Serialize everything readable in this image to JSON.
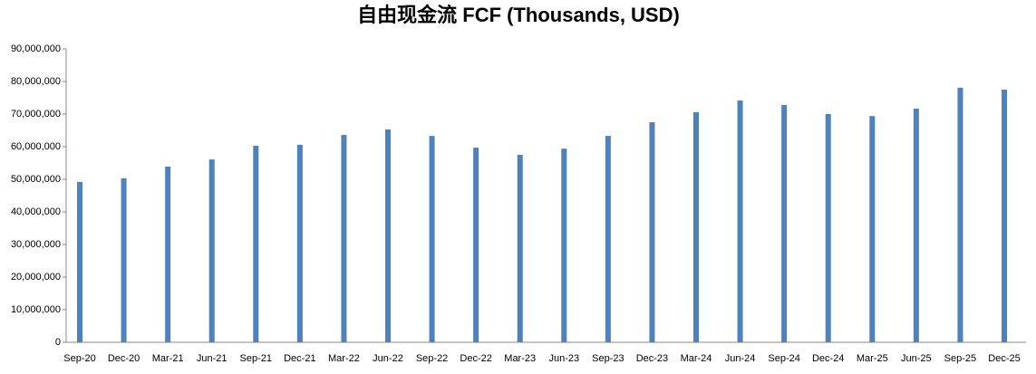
{
  "chart_data": {
    "type": "bar",
    "title": "自由现金流 FCF (Thousands, USD)",
    "categories": [
      "Sep-20",
      "Dec-20",
      "Mar-21",
      "Jun-21",
      "Sep-21",
      "Dec-21",
      "Mar-22",
      "Jun-22",
      "Sep-22",
      "Dec-22",
      "Mar-23",
      "Jun-23",
      "Sep-23",
      "Dec-23",
      "Mar-24",
      "Jun-24",
      "Sep-24",
      "Dec-24",
      "Mar-25",
      "Jun-25",
      "Sep-25",
      "Dec-25"
    ],
    "values": [
      49200000,
      50300000,
      53900000,
      56100000,
      60300000,
      60600000,
      63600000,
      65300000,
      63300000,
      59700000,
      57500000,
      59400000,
      63300000,
      67500000,
      70600000,
      74200000,
      72800000,
      70000000,
      69400000,
      71700000,
      78100000,
      77500000
    ],
    "color": "#4f81bd",
    "ylim": [
      0,
      90000000
    ],
    "yticks": [
      0,
      {
        "value": 10000000,
        "label": "10,000,000"
      },
      {
        "value": 20000000,
        "label": "20,000,000"
      },
      {
        "value": 30000000,
        "label": "30,000,000"
      },
      {
        "value": 40000000,
        "label": "40,000,000"
      },
      {
        "value": 50000000,
        "label": "50,000,000"
      },
      {
        "value": 60000000,
        "label": "60,000,000"
      },
      {
        "value": 70000000,
        "label": "70,000,000"
      },
      {
        "value": 80000000,
        "label": "80,000,000"
      },
      {
        "value": 90000000,
        "label": "90,000,000"
      }
    ],
    "grid": false
  }
}
